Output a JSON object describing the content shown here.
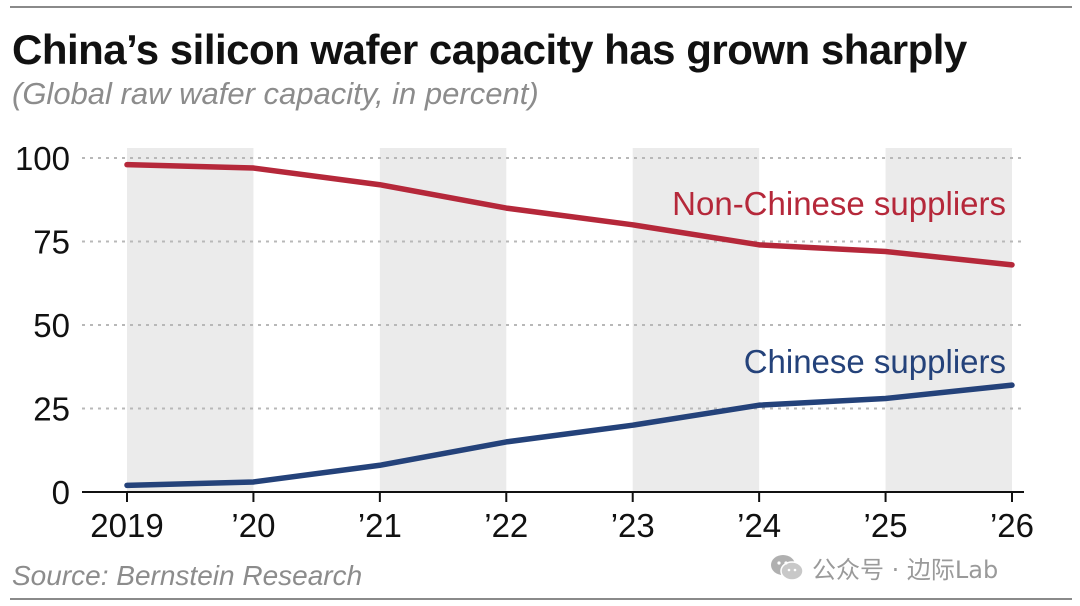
{
  "header": {
    "title": "China’s silicon wafer capacity has grown sharply",
    "subtitle": "(Global raw wafer capacity, in percent)"
  },
  "footer": {
    "source": "Source: Bernstein Research",
    "watermark": "公众号 · 边际Lab",
    "watermark_icon": "wechat-icon"
  },
  "colors": {
    "non_chinese": "#b5283a",
    "chinese": "#24427a",
    "band": "#ebebeb",
    "grid": "#b8b8b8"
  },
  "chart_data": {
    "type": "line",
    "categories": [
      "2019",
      "’20",
      "’21",
      "’22",
      "’23",
      "’24",
      "’25",
      "’26"
    ],
    "ylim": [
      0,
      100
    ],
    "yticks": [
      0,
      25,
      50,
      75,
      100
    ],
    "grid": true,
    "alternating_bands": true,
    "series": [
      {
        "name": "Non-Chinese suppliers",
        "values": [
          98,
          97,
          92,
          85,
          80,
          74,
          72,
          68
        ]
      },
      {
        "name": "Chinese suppliers",
        "values": [
          2,
          3,
          8,
          15,
          20,
          26,
          28,
          32
        ]
      }
    ]
  }
}
